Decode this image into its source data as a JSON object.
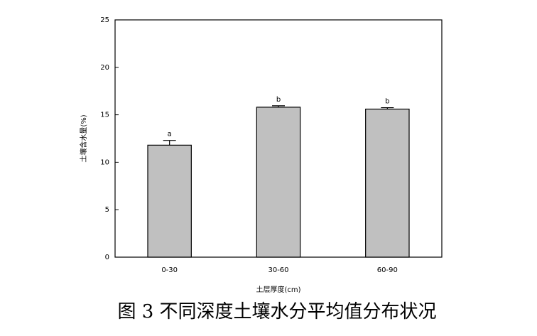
{
  "chart_data": {
    "type": "bar",
    "x_label": "土层厚度(cm)",
    "y_label": "土壤含水量(%)",
    "caption": "图 3  不同深度土壤水分平均值分布状况",
    "categories": [
      "0-30",
      "30-60",
      "60-90"
    ],
    "values": [
      11.8,
      15.8,
      15.6
    ],
    "errors": [
      0.5,
      0.15,
      0.15
    ],
    "significance_labels": [
      "a",
      "b",
      "b"
    ],
    "color": "#c0c0c0",
    "ylim": [
      0,
      25
    ],
    "yticks": [
      0,
      5,
      10,
      15,
      20,
      25
    ]
  }
}
